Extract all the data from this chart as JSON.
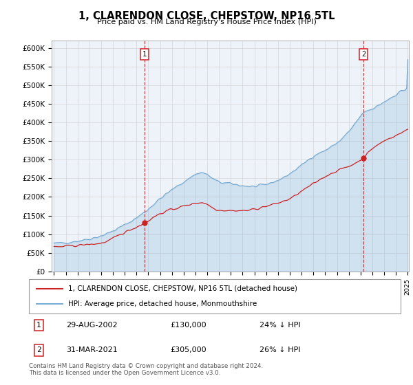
{
  "title": "1, CLARENDON CLOSE, CHEPSTOW, NP16 5TL",
  "subtitle": "Price paid vs. HM Land Registry's House Price Index (HPI)",
  "ylabel_ticks": [
    "£0",
    "£50K",
    "£100K",
    "£150K",
    "£200K",
    "£250K",
    "£300K",
    "£350K",
    "£400K",
    "£450K",
    "£500K",
    "£550K",
    "£600K"
  ],
  "ytick_values": [
    0,
    50000,
    100000,
    150000,
    200000,
    250000,
    300000,
    350000,
    400000,
    450000,
    500000,
    550000,
    600000
  ],
  "ylim": [
    0,
    620000
  ],
  "hpi_color": "#7aadd4",
  "price_color": "#cc2222",
  "sale1_year": 2002.67,
  "sale2_year": 2021.25,
  "sale1_price_val": 130000,
  "sale2_price_val": 305000,
  "sale1_date": "29-AUG-2002",
  "sale1_price": "£130,000",
  "sale1_hpi": "24% ↓ HPI",
  "sale2_date": "31-MAR-2021",
  "sale2_price": "£305,000",
  "sale2_hpi": "26% ↓ HPI",
  "legend_label1": "1, CLARENDON CLOSE, CHEPSTOW, NP16 5TL (detached house)",
  "legend_label2": "HPI: Average price, detached house, Monmouthshire",
  "footer": "Contains HM Land Registry data © Crown copyright and database right 2024.\nThis data is licensed under the Open Government Licence v3.0.",
  "bg_color": "#ffffff",
  "grid_color": "#cccccc",
  "x_start_year": 1995,
  "x_end_year": 2025
}
